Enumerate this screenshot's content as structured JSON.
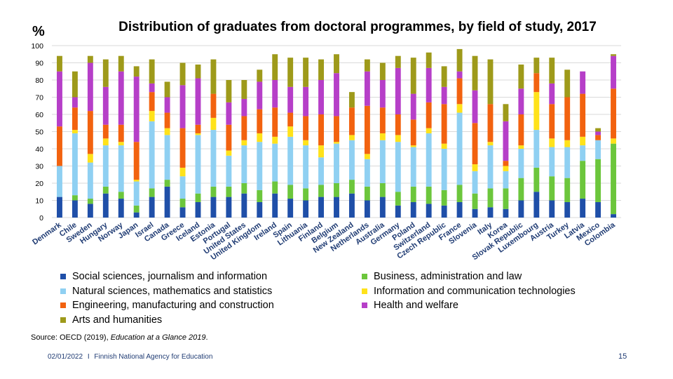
{
  "slide": {
    "title": "Distribution of graduates from doctoral programmes, by field of study, 2017",
    "unit": "%",
    "source_prefix": "Source: OECD (2019), ",
    "source_title": "Education at a Glance 2019",
    "source_suffix": ".",
    "footer_date": "02/01/2022",
    "footer_separator": "I",
    "footer_org": "Finnish National Agency for Education",
    "page_number": "15"
  },
  "colors": {
    "social": "#1f4fa8",
    "natural": "#8fd0f2",
    "engineering": "#f2620f",
    "arts": "#9e9a1a",
    "business": "#6cc63c",
    "ict": "#ffe21a",
    "health": "#b63fc8"
  },
  "chart_data": {
    "type": "bar",
    "stacked": true,
    "title": "Distribution of graduates from doctoral programmes, by field of study, 2017",
    "ylabel": "%",
    "ylim": [
      0,
      100
    ],
    "yticks": [
      0,
      10,
      20,
      30,
      40,
      50,
      60,
      70,
      80,
      90,
      100
    ],
    "grid": true,
    "legend_position": "bottom",
    "categories": [
      "Denmark",
      "Chile",
      "Sweden",
      "Hungary",
      "Norway",
      "Japan",
      "Israel",
      "Canada",
      "Greece",
      "Iceland",
      "Estonia",
      "Portugal",
      "United States",
      "United Kingdom",
      "Ireland",
      "Spain",
      "Lithuania",
      "Finland",
      "Belgium",
      "New Zealand",
      "Netherlands",
      "Australia",
      "Germany",
      "Poland",
      "Switzerland",
      "Czech Republic",
      "France",
      "Slovenia",
      "Italy",
      "Korea",
      "Slovak Republic",
      "Luxembourg",
      "Austria",
      "Turkey",
      "Latvia",
      "Mexico",
      "Colombia"
    ],
    "series": [
      {
        "key": "social",
        "values": [
          12,
          10,
          8,
          14,
          11,
          3,
          12,
          18,
          6,
          9,
          12,
          12,
          14,
          9,
          14,
          11,
          10,
          12,
          12,
          14,
          10,
          12,
          7,
          9,
          8,
          7,
          9,
          5,
          6,
          5,
          10,
          15,
          10,
          9,
          11,
          9,
          2
        ]
      },
      {
        "key": "business",
        "values": [
          0,
          3,
          3,
          4,
          4,
          4,
          5,
          4,
          5,
          5,
          6,
          6,
          6,
          7,
          7,
          8,
          7,
          7,
          8,
          8,
          8,
          8,
          8,
          9,
          10,
          9,
          10,
          9,
          11,
          12,
          13,
          14,
          14,
          14,
          22,
          25,
          41
        ]
      },
      {
        "key": "natural",
        "values": [
          18,
          36,
          21,
          24,
          27,
          14,
          39,
          26,
          13,
          34,
          33,
          18,
          22,
          28,
          22,
          28,
          25,
          16,
          23,
          23,
          16,
          25,
          29,
          23,
          31,
          24,
          42,
          13,
          25,
          10,
          17,
          22,
          17,
          18,
          9,
          11,
          0
        ]
      },
      {
        "key": "ict",
        "values": [
          0,
          2,
          5,
          4,
          2,
          1,
          6,
          4,
          5,
          1,
          7,
          3,
          3,
          5,
          4,
          6,
          3,
          7,
          1,
          3,
          3,
          4,
          4,
          1,
          3,
          3,
          5,
          4,
          2,
          3,
          2,
          22,
          5,
          4,
          5,
          0,
          3
        ]
      },
      {
        "key": "engineering",
        "values": [
          23,
          13,
          25,
          8,
          10,
          22,
          11,
          9,
          23,
          5,
          14,
          15,
          14,
          14,
          17,
          8,
          14,
          18,
          15,
          16,
          28,
          15,
          12,
          15,
          15,
          23,
          15,
          24,
          22,
          3,
          18,
          11,
          20,
          25,
          25,
          3,
          29
        ]
      },
      {
        "key": "health",
        "values": [
          32,
          6,
          28,
          22,
          31,
          38,
          5,
          9,
          25,
          27,
          0,
          13,
          10,
          16,
          16,
          15,
          17,
          20,
          25,
          0,
          20,
          16,
          27,
          15,
          20,
          10,
          4,
          19,
          0,
          23,
          15,
          0,
          12,
          0,
          13,
          2,
          19
        ]
      },
      {
        "key": "arts",
        "values": [
          9,
          15,
          4,
          16,
          9,
          6,
          14,
          9,
          13,
          8,
          20,
          13,
          11,
          7,
          15,
          17,
          17,
          12,
          11,
          9,
          7,
          10,
          7,
          21,
          9,
          12,
          13,
          20,
          26,
          10,
          14,
          9,
          15,
          16,
          0,
          2,
          1
        ]
      }
    ],
    "legend": {
      "social": "Social sciences, journalism and information",
      "natural": "Natural sciences, mathematics and statistics",
      "engineering": "Engineering, manufacturing and construction",
      "arts": "Arts and humanities",
      "business": "Business, administration and law",
      "ict": "Information and communication technologies",
      "health": "Health and welfare"
    }
  }
}
